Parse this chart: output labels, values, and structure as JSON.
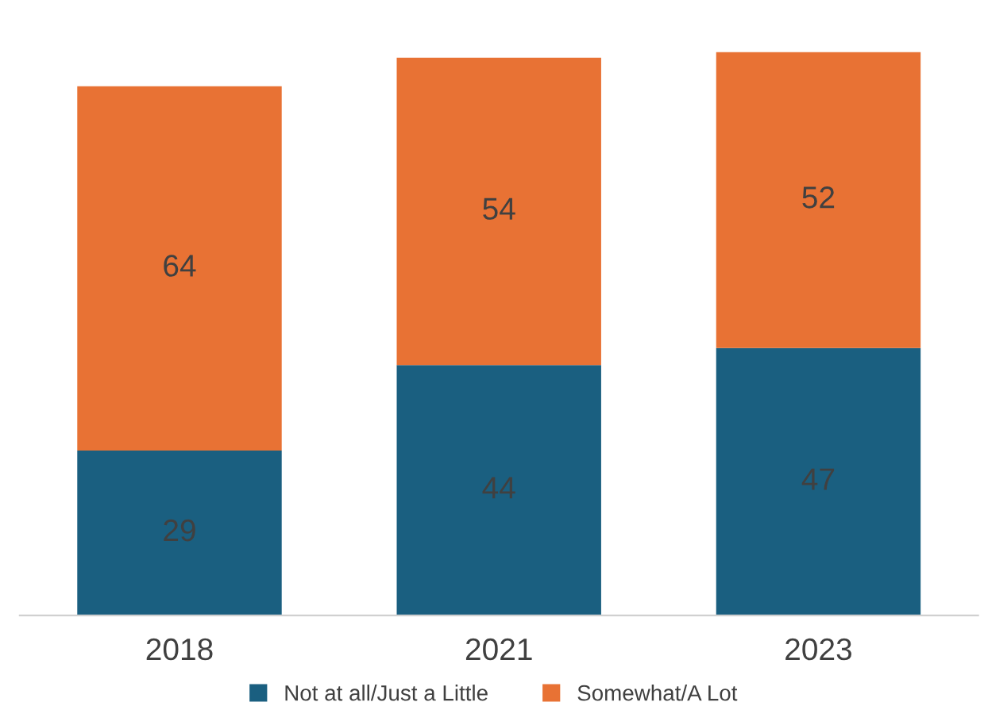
{
  "chart_data": {
    "type": "bar",
    "stacked": true,
    "categories": [
      "2018",
      "2021",
      "2023"
    ],
    "series": [
      {
        "name": "Not at all/Just a Little",
        "color": "#1a5f80",
        "values": [
          29,
          44,
          47
        ]
      },
      {
        "name": "Somewhat/A Lot",
        "color": "#e87234",
        "values": [
          64,
          54,
          52
        ]
      }
    ],
    "data_labels": true,
    "legend": "bottom"
  }
}
